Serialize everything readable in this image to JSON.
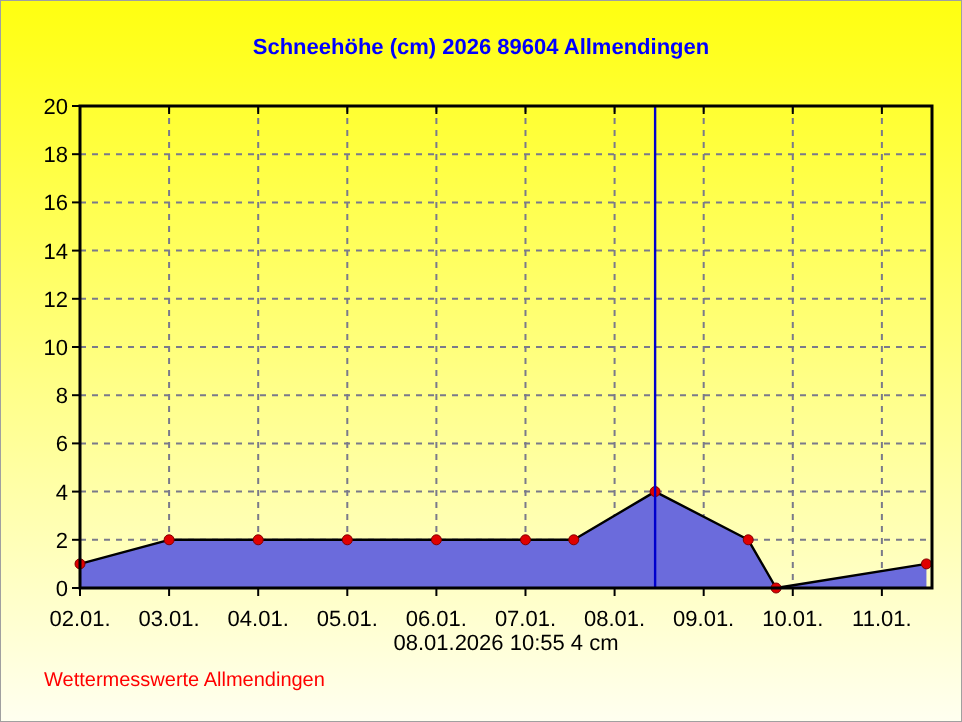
{
  "chart_data": {
    "type": "area",
    "title": "Schneehöhe (cm)  2026      89604 Allmendingen",
    "x": [
      "2026-01-02T00:00",
      "2026-01-03T00:00",
      "2026-01-04T00:00",
      "2026-01-05T00:00",
      "2026-01-06T00:00",
      "2026-01-07T00:00",
      "2026-01-07T13:00",
      "2026-01-08T10:55",
      "2026-01-09T12:00",
      "2026-01-09T19:30",
      "2026-01-11T12:00"
    ],
    "series": [
      {
        "color": "#6b6bdc",
        "values": [
          1,
          2,
          2,
          2,
          2,
          2,
          2,
          4,
          2,
          0,
          1
        ]
      }
    ],
    "xlim": [
      "2026-01-02T00:00",
      "2026-01-11T13:30"
    ],
    "xticks": [
      {
        "value": "2026-01-02T00:00",
        "label": "02.01."
      },
      {
        "value": "2026-01-03T00:00",
        "label": "03.01."
      },
      {
        "value": "2026-01-04T00:00",
        "label": "04.01."
      },
      {
        "value": "2026-01-05T00:00",
        "label": "05.01."
      },
      {
        "value": "2026-01-06T00:00",
        "label": "06.01."
      },
      {
        "value": "2026-01-07T00:00",
        "label": "07.01."
      },
      {
        "value": "2026-01-08T00:00",
        "label": "08.01."
      },
      {
        "value": "2026-01-09T00:00",
        "label": "09.01."
      },
      {
        "value": "2026-01-10T00:00",
        "label": "10.01."
      },
      {
        "value": "2026-01-11T00:00",
        "label": "11.01."
      }
    ],
    "ylim": [
      0,
      20
    ],
    "yticks": [
      0,
      2,
      4,
      6,
      8,
      10,
      12,
      14,
      16,
      18,
      20
    ],
    "grid": true,
    "marker": "circle",
    "ref_lines": [
      {
        "axis": "x",
        "value": "2026-01-08T10:55",
        "label": "08.01.2026  10:55   4 cm",
        "color": "#0000cc"
      }
    ],
    "annotations": [
      "Wettermesswerte Allmendingen"
    ]
  }
}
